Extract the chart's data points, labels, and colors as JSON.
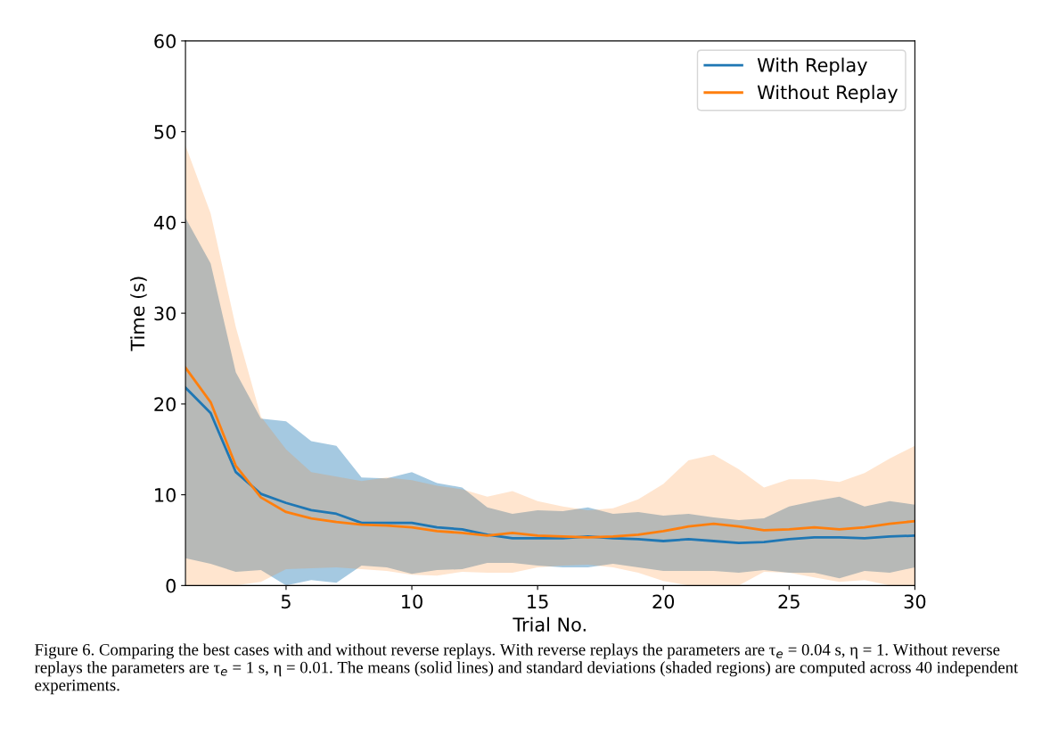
{
  "chart_data": {
    "type": "line",
    "xlabel": "Trial No.",
    "ylabel": "Time (s)",
    "x": [
      1,
      2,
      3,
      4,
      5,
      6,
      7,
      8,
      9,
      10,
      11,
      12,
      13,
      14,
      15,
      16,
      17,
      18,
      19,
      20,
      21,
      22,
      23,
      24,
      25,
      26,
      27,
      28,
      29,
      30
    ],
    "xlim": [
      1,
      30
    ],
    "xticks": [
      5,
      10,
      15,
      20,
      25,
      30
    ],
    "ylim": [
      0,
      60
    ],
    "yticks": [
      0,
      10,
      20,
      30,
      40,
      50,
      60
    ],
    "grid": false,
    "legend": "top right",
    "marker": "none",
    "line_style": "solid",
    "series": [
      {
        "name": "With Replay",
        "color": "#1f77b4",
        "values": [
          21.8,
          19,
          12.5,
          10.1,
          9.1,
          8.3,
          7.9,
          6.9,
          6.9,
          6.9,
          6.4,
          6.2,
          5.6,
          5.2,
          5.2,
          5.2,
          5.4,
          5.2,
          5.1,
          4.9,
          5.1,
          4.9,
          4.7,
          4.8,
          5.1,
          5.3,
          5.3,
          5.2,
          5.4,
          5.5
        ],
        "upper": [
          40.5,
          35.5,
          23.5,
          18.4,
          18.1,
          15.9,
          15.4,
          11.9,
          11.8,
          12.5,
          11.3,
          10.8,
          8.6,
          7.9,
          8.3,
          8.2,
          8.6,
          7.9,
          8.1,
          7.7,
          7.9,
          7.5,
          7.2,
          7.4,
          8.7,
          9.3,
          9.8,
          8.7,
          9.3,
          8.9
        ],
        "lower": [
          3,
          2.4,
          1.5,
          1.7,
          0,
          0.6,
          0.3,
          2.2,
          2.0,
          1.3,
          1.7,
          1.8,
          2.5,
          2.5,
          2.2,
          2.0,
          2.0,
          2.4,
          2.0,
          1.6,
          1.6,
          1.6,
          1.4,
          1.7,
          1.4,
          1.4,
          0.8,
          1.6,
          1.4,
          2.0
        ]
      },
      {
        "name": "Without Replay",
        "color": "#ff7f0e",
        "values": [
          24,
          20.2,
          13.2,
          9.7,
          8.1,
          7.4,
          7.0,
          6.7,
          6.6,
          6.4,
          6.0,
          5.8,
          5.5,
          5.8,
          5.5,
          5.4,
          5.3,
          5.4,
          5.6,
          6.0,
          6.5,
          6.8,
          6.5,
          6.1,
          6.2,
          6.4,
          6.2,
          6.4,
          6.8,
          7.1
        ],
        "upper": [
          48.5,
          41,
          28.5,
          18.6,
          15.0,
          12.5,
          12.0,
          11.5,
          11.9,
          11.6,
          11.0,
          10.6,
          9.8,
          10.4,
          9.3,
          8.7,
          8.3,
          8.5,
          9.5,
          11.2,
          13.8,
          14.4,
          12.8,
          10.8,
          11.7,
          11.7,
          11.4,
          12.4,
          14.0,
          15.4
        ],
        "lower": [
          0,
          0,
          0,
          0.4,
          1.8,
          1.9,
          2.0,
          1.8,
          1.6,
          1.2,
          1.1,
          1.5,
          1.4,
          1.4,
          2.0,
          2.2,
          2.3,
          2.0,
          1.4,
          0.5,
          0,
          0,
          0,
          1.5,
          1.4,
          0.9,
          0.4,
          0.6,
          0,
          0
        ]
      }
    ],
    "annotations": [
      "Figure 6. Comparing the best cases with and without reverse replays. With reverse replays the parameters are τ$_{e}$ = 0.04 s, η = 1. Without reverse replays the parameters are τ$_{e}$ = 1 s, η = 0.01. The means (solid lines) and standard deviations (shaded regions) are computed across 40 independent experiments."
    ]
  }
}
